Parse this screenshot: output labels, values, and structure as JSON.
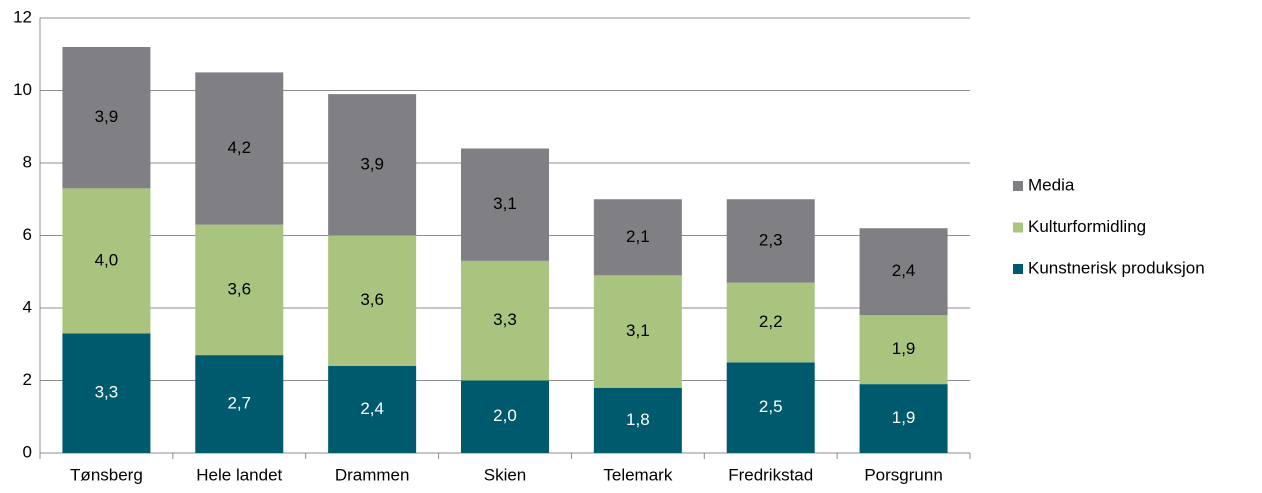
{
  "chart_data": {
    "type": "stacked_bar",
    "categories": [
      "Tønsberg",
      "Hele landet",
      "Drammen",
      "Skien",
      "Telemark",
      "Fredrikstad",
      "Porsgrunn"
    ],
    "series": [
      {
        "name": "Kunstnerisk produksjon",
        "color": "#005a6e",
        "values": [
          3.3,
          2.7,
          2.4,
          2.0,
          1.8,
          2.5,
          1.9
        ],
        "value_labels": [
          "3,3",
          "2,7",
          "2,4",
          "2,0",
          "1,8",
          "2,5",
          "1,9"
        ]
      },
      {
        "name": "Kulturformidling",
        "color": "#a9c47f",
        "values": [
          4.0,
          3.6,
          3.6,
          3.3,
          3.1,
          2.2,
          1.9
        ],
        "value_labels": [
          "4,0",
          "3,6",
          "3,6",
          "3,3",
          "3,1",
          "2,2",
          "1,9"
        ]
      },
      {
        "name": "Media",
        "color": "#807f83",
        "values": [
          3.9,
          4.2,
          3.9,
          3.1,
          2.1,
          2.3,
          2.4
        ],
        "value_labels": [
          "3,9",
          "4,2",
          "3,9",
          "3,1",
          "2,1",
          "2,3",
          "2,4"
        ]
      }
    ],
    "ylim": [
      0,
      12
    ],
    "yticks": [
      0,
      2,
      4,
      6,
      8,
      10,
      12
    ],
    "grid": true,
    "legend": "right"
  }
}
